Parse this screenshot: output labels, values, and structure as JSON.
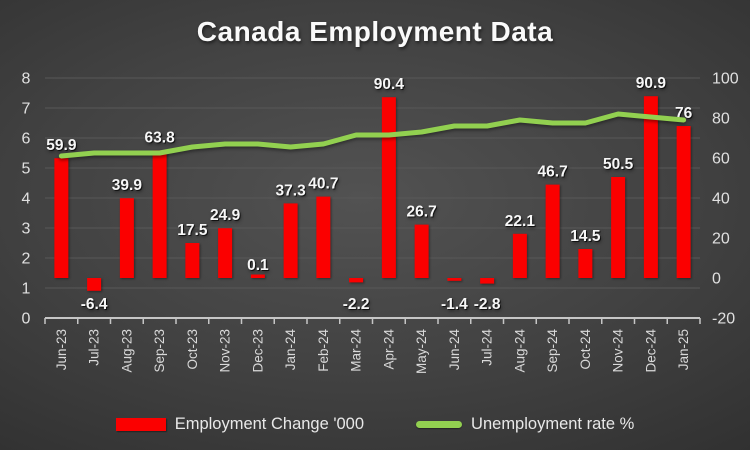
{
  "title": "Canada Employment Data",
  "colors": {
    "bar": "#fb0000",
    "line": "#92d050",
    "grid": "#585858",
    "axis": "#c6c6c6",
    "background": "#3f3f3f"
  },
  "legend": {
    "bar_label": "Employment Change '000",
    "line_label": "Unemployment rate %"
  },
  "chart_data": {
    "type": "bar",
    "title": "Canada Employment Data",
    "grid": true,
    "legend_position": "bottom",
    "categories": [
      "Jun-23",
      "Jul-23",
      "Aug-23",
      "Sep-23",
      "Oct-23",
      "Nov-23",
      "Dec-23",
      "Jan-24",
      "Feb-24",
      "Mar-24",
      "Apr-24",
      "May-24",
      "Jun-24",
      "Jul-24",
      "Aug-24",
      "Sep-24",
      "Oct-24",
      "Nov-24",
      "Dec-24",
      "Jan-25"
    ],
    "series": [
      {
        "name": "Employment Change '000",
        "type": "bar",
        "axis": "right",
        "values": [
          59.9,
          -6.4,
          39.9,
          63.8,
          17.5,
          24.9,
          0.1,
          37.3,
          40.7,
          -2.2,
          90.4,
          26.7,
          -1.4,
          -2.8,
          22.1,
          46.7,
          14.5,
          50.5,
          90.9,
          76
        ],
        "labels": [
          "59.9",
          "-6.4",
          "39.9",
          "63.8",
          "17.5",
          "24.9",
          "0.1",
          "37.3",
          "40.7",
          "-2.2",
          "90.4",
          "26.7",
          "-1.4",
          "-2.8",
          "22.1",
          "46.7",
          "14.5",
          "50.5",
          "90.9",
          "76"
        ]
      },
      {
        "name": "Unemployment rate %",
        "type": "line",
        "axis": "left",
        "values": [
          5.4,
          5.5,
          5.5,
          5.5,
          5.7,
          5.8,
          5.8,
          5.7,
          5.8,
          6.1,
          6.1,
          6.2,
          6.4,
          6.4,
          6.6,
          6.5,
          6.5,
          6.8,
          6.7,
          6.6
        ]
      }
    ],
    "left_axis": {
      "min": 0,
      "max": 8,
      "step": 1,
      "tick_labels": [
        "0",
        "1",
        "2",
        "3",
        "4",
        "5",
        "6",
        "7",
        "8"
      ]
    },
    "right_axis": {
      "min": -20,
      "max": 100,
      "step": 20,
      "tick_labels": [
        "-20",
        "0",
        "20",
        "40",
        "60",
        "80",
        "100"
      ]
    }
  }
}
